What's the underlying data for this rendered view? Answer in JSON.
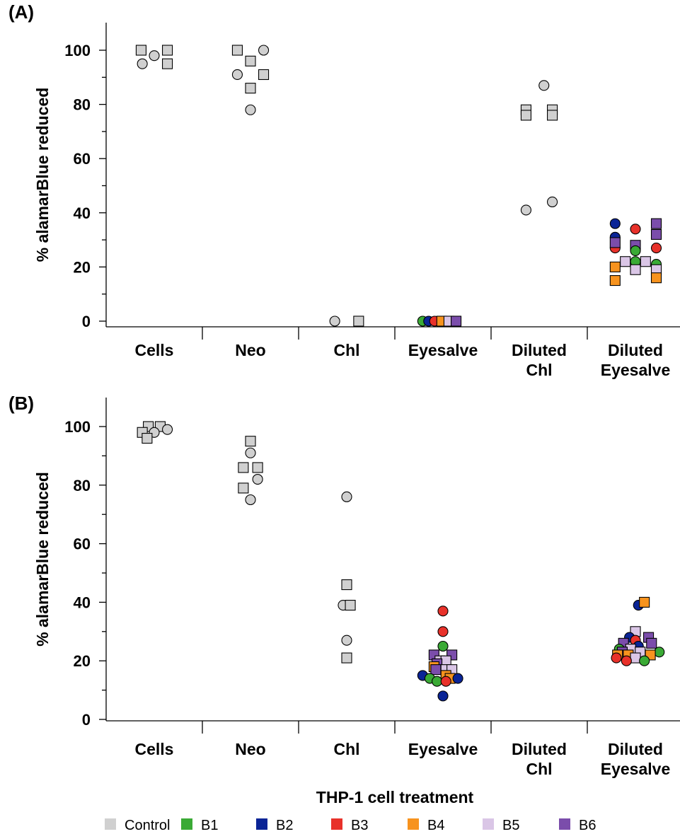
{
  "xlabel": "THP-1 cell treatment",
  "legend": [
    {
      "label": "Control",
      "color": "#d0d0d0",
      "edge": false
    },
    {
      "label": "B1",
      "color": "#3aaa35",
      "edge": false
    },
    {
      "label": "B2",
      "color": "#0a2496",
      "edge": false
    },
    {
      "label": "B3",
      "color": "#e8312a",
      "edge": false
    },
    {
      "label": "B4",
      "color": "#f7931e",
      "edge": false
    },
    {
      "label": "B5",
      "color": "#dac6e6",
      "edge": false
    },
    {
      "label": "B6",
      "color": "#7b4dab",
      "edge": false
    }
  ],
  "chart_data": [
    {
      "panel": "(A)",
      "type": "scatter",
      "ylabel": "% alamarBlue reduced",
      "ylim": [
        -2,
        110
      ],
      "yticks": [
        0,
        20,
        40,
        60,
        80,
        100
      ],
      "categories": [
        "Cells",
        "Neo",
        "Chl",
        "Eyesalve",
        "Diluted Chl",
        "Diluted Eyesalve"
      ],
      "points": [
        {
          "cat": 0,
          "dx": -0.22,
          "y": 100,
          "shape": "square",
          "group": "Control"
        },
        {
          "cat": 0,
          "dx": 0.22,
          "y": 100,
          "shape": "square",
          "group": "Control"
        },
        {
          "cat": 0,
          "dx": -0.2,
          "y": 95,
          "shape": "circle",
          "group": "Control"
        },
        {
          "cat": 0,
          "dx": 0.0,
          "y": 98,
          "shape": "circle",
          "group": "Control"
        },
        {
          "cat": 0,
          "dx": 0.22,
          "y": 95,
          "shape": "square",
          "group": "Control"
        },
        {
          "cat": 1,
          "dx": -0.22,
          "y": 100,
          "shape": "square",
          "group": "Control"
        },
        {
          "cat": 1,
          "dx": 0.22,
          "y": 100,
          "shape": "circle",
          "group": "Control"
        },
        {
          "cat": 1,
          "dx": 0.0,
          "y": 96,
          "shape": "square",
          "group": "Control"
        },
        {
          "cat": 1,
          "dx": -0.22,
          "y": 91,
          "shape": "circle",
          "group": "Control"
        },
        {
          "cat": 1,
          "dx": 0.22,
          "y": 91,
          "shape": "square",
          "group": "Control"
        },
        {
          "cat": 1,
          "dx": 0.0,
          "y": 86,
          "shape": "square",
          "group": "Control"
        },
        {
          "cat": 1,
          "dx": 0.0,
          "y": 78,
          "shape": "circle",
          "group": "Control"
        },
        {
          "cat": 2,
          "dx": -0.2,
          "y": 0,
          "shape": "circle",
          "group": "Control"
        },
        {
          "cat": 2,
          "dx": 0.2,
          "y": 0,
          "shape": "square",
          "group": "Control"
        },
        {
          "cat": 3,
          "dx": -0.34,
          "y": 0,
          "shape": "circle",
          "group": "B1"
        },
        {
          "cat": 3,
          "dx": -0.24,
          "y": 0,
          "shape": "circle",
          "group": "B2"
        },
        {
          "cat": 3,
          "dx": -0.14,
          "y": 0,
          "shape": "circle",
          "group": "B3"
        },
        {
          "cat": 3,
          "dx": -0.02,
          "y": 0,
          "shape": "square",
          "group": "B4"
        },
        {
          "cat": 3,
          "dx": 0.1,
          "y": 0,
          "shape": "square",
          "group": "B5"
        },
        {
          "cat": 3,
          "dx": 0.22,
          "y": 0,
          "shape": "square",
          "group": "B6"
        },
        {
          "cat": 4,
          "dx": -0.22,
          "y": 78,
          "shape": "square",
          "group": "Control"
        },
        {
          "cat": 4,
          "dx": 0.22,
          "y": 78,
          "shape": "square",
          "group": "Control"
        },
        {
          "cat": 4,
          "dx": -0.22,
          "y": 76,
          "shape": "square",
          "group": "Control"
        },
        {
          "cat": 4,
          "dx": 0.22,
          "y": 76,
          "shape": "square",
          "group": "Control"
        },
        {
          "cat": 4,
          "dx": 0.08,
          "y": 87,
          "shape": "circle",
          "group": "Control"
        },
        {
          "cat": 4,
          "dx": -0.22,
          "y": 41,
          "shape": "circle",
          "group": "Control"
        },
        {
          "cat": 4,
          "dx": 0.22,
          "y": 44,
          "shape": "circle",
          "group": "Control"
        },
        {
          "cat": 5,
          "dx": -0.34,
          "y": 36,
          "shape": "circle",
          "group": "B2"
        },
        {
          "cat": 5,
          "dx": -0.34,
          "y": 31,
          "shape": "circle",
          "group": "B2"
        },
        {
          "cat": 5,
          "dx": -0.34,
          "y": 27,
          "shape": "circle",
          "group": "B3"
        },
        {
          "cat": 5,
          "dx": -0.34,
          "y": 29,
          "shape": "square",
          "group": "B6"
        },
        {
          "cat": 5,
          "dx": 0.0,
          "y": 34,
          "shape": "circle",
          "group": "B3"
        },
        {
          "cat": 5,
          "dx": 0.35,
          "y": 36,
          "shape": "square",
          "group": "B6"
        },
        {
          "cat": 5,
          "dx": 0.35,
          "y": 32,
          "shape": "square",
          "group": "B6"
        },
        {
          "cat": 5,
          "dx": 0.35,
          "y": 27,
          "shape": "circle",
          "group": "B3"
        },
        {
          "cat": 5,
          "dx": 0.0,
          "y": 28,
          "shape": "square",
          "group": "B6"
        },
        {
          "cat": 5,
          "dx": 0.0,
          "y": 26,
          "shape": "circle",
          "group": "B1"
        },
        {
          "cat": 5,
          "dx": 0.0,
          "y": 22,
          "shape": "circle",
          "group": "B1"
        },
        {
          "cat": 5,
          "dx": 0.35,
          "y": 21,
          "shape": "circle",
          "group": "B1"
        },
        {
          "cat": 5,
          "dx": -0.17,
          "y": 22,
          "shape": "square",
          "group": "B5"
        },
        {
          "cat": 5,
          "dx": 0.17,
          "y": 22,
          "shape": "square",
          "group": "B5"
        },
        {
          "cat": 5,
          "dx": 0.0,
          "y": 19,
          "shape": "square",
          "group": "B5"
        },
        {
          "cat": 5,
          "dx": 0.35,
          "y": 19,
          "shape": "square",
          "group": "B5"
        },
        {
          "cat": 5,
          "dx": -0.34,
          "y": 20,
          "shape": "square",
          "group": "B4"
        },
        {
          "cat": 5,
          "dx": -0.34,
          "y": 15,
          "shape": "square",
          "group": "B4"
        },
        {
          "cat": 5,
          "dx": 0.35,
          "y": 16,
          "shape": "square",
          "group": "B4"
        }
      ]
    },
    {
      "panel": "(B)",
      "type": "scatter",
      "ylabel": "% alamarBlue reduced",
      "ylim": [
        -2,
        110
      ],
      "yticks": [
        0,
        20,
        40,
        60,
        80,
        100
      ],
      "categories": [
        "Cells",
        "Neo",
        "Chl",
        "Eyesalve",
        "Diluted Chl",
        "Diluted Eyesalve"
      ],
      "points": [
        {
          "cat": 0,
          "dx": -0.1,
          "y": 100,
          "shape": "square",
          "group": "Control"
        },
        {
          "cat": 0,
          "dx": 0.1,
          "y": 100,
          "shape": "square",
          "group": "Control"
        },
        {
          "cat": 0,
          "dx": -0.2,
          "y": 98,
          "shape": "square",
          "group": "Control"
        },
        {
          "cat": 0,
          "dx": 0.0,
          "y": 98,
          "shape": "circle",
          "group": "Control"
        },
        {
          "cat": 0,
          "dx": 0.22,
          "y": 99,
          "shape": "circle",
          "group": "Control"
        },
        {
          "cat": 0,
          "dx": -0.12,
          "y": 96,
          "shape": "square",
          "group": "Control"
        },
        {
          "cat": 1,
          "dx": 0.0,
          "y": 95,
          "shape": "square",
          "group": "Control"
        },
        {
          "cat": 1,
          "dx": 0.0,
          "y": 91,
          "shape": "circle",
          "group": "Control"
        },
        {
          "cat": 1,
          "dx": -0.12,
          "y": 86,
          "shape": "square",
          "group": "Control"
        },
        {
          "cat": 1,
          "dx": 0.12,
          "y": 86,
          "shape": "square",
          "group": "Control"
        },
        {
          "cat": 1,
          "dx": 0.12,
          "y": 82,
          "shape": "circle",
          "group": "Control"
        },
        {
          "cat": 1,
          "dx": -0.12,
          "y": 79,
          "shape": "square",
          "group": "Control"
        },
        {
          "cat": 1,
          "dx": 0.0,
          "y": 75,
          "shape": "circle",
          "group": "Control"
        },
        {
          "cat": 2,
          "dx": 0.0,
          "y": 76,
          "shape": "circle",
          "group": "Control"
        },
        {
          "cat": 2,
          "dx": 0.0,
          "y": 46,
          "shape": "square",
          "group": "Control"
        },
        {
          "cat": 2,
          "dx": -0.06,
          "y": 39,
          "shape": "circle",
          "group": "Control"
        },
        {
          "cat": 2,
          "dx": 0.06,
          "y": 39,
          "shape": "square",
          "group": "Control"
        },
        {
          "cat": 2,
          "dx": 0.0,
          "y": 27,
          "shape": "circle",
          "group": "Control"
        },
        {
          "cat": 2,
          "dx": 0.0,
          "y": 21,
          "shape": "square",
          "group": "Control"
        },
        {
          "cat": 3,
          "dx": 0.0,
          "y": 37,
          "shape": "circle",
          "group": "B3"
        },
        {
          "cat": 3,
          "dx": 0.0,
          "y": 30,
          "shape": "circle",
          "group": "B3"
        },
        {
          "cat": 3,
          "dx": 0.0,
          "y": 25,
          "shape": "circle",
          "group": "B1"
        },
        {
          "cat": 3,
          "dx": -0.15,
          "y": 22,
          "shape": "square",
          "group": "B6"
        },
        {
          "cat": 3,
          "dx": 0.15,
          "y": 22,
          "shape": "square",
          "group": "B6"
        },
        {
          "cat": 3,
          "dx": -0.05,
          "y": 20,
          "shape": "square",
          "group": "B5"
        },
        {
          "cat": 3,
          "dx": 0.05,
          "y": 20,
          "shape": "square",
          "group": "B5"
        },
        {
          "cat": 3,
          "dx": -0.1,
          "y": 19,
          "shape": "square",
          "group": "B6"
        },
        {
          "cat": 3,
          "dx": -0.15,
          "y": 18,
          "shape": "square",
          "group": "B4"
        },
        {
          "cat": 3,
          "dx": 0.05,
          "y": 17,
          "shape": "square",
          "group": "B5"
        },
        {
          "cat": 3,
          "dx": 0.15,
          "y": 17,
          "shape": "square",
          "group": "B5"
        },
        {
          "cat": 3,
          "dx": -0.12,
          "y": 17,
          "shape": "square",
          "group": "B6"
        },
        {
          "cat": 3,
          "dx": 0.05,
          "y": 15,
          "shape": "square",
          "group": "B4"
        },
        {
          "cat": 3,
          "dx": 0.12,
          "y": 14,
          "shape": "square",
          "group": "B4"
        },
        {
          "cat": 3,
          "dx": -0.34,
          "y": 15,
          "shape": "circle",
          "group": "B2"
        },
        {
          "cat": 3,
          "dx": -0.22,
          "y": 14,
          "shape": "circle",
          "group": "B1"
        },
        {
          "cat": 3,
          "dx": -0.1,
          "y": 13,
          "shape": "circle",
          "group": "B1"
        },
        {
          "cat": 3,
          "dx": 0.05,
          "y": 13,
          "shape": "circle",
          "group": "B3"
        },
        {
          "cat": 3,
          "dx": 0.25,
          "y": 14,
          "shape": "circle",
          "group": "B2"
        },
        {
          "cat": 3,
          "dx": 0.0,
          "y": 8,
          "shape": "circle",
          "group": "B2"
        },
        {
          "cat": 5,
          "dx": 0.05,
          "y": 39,
          "shape": "circle",
          "group": "B2"
        },
        {
          "cat": 5,
          "dx": 0.15,
          "y": 40,
          "shape": "square",
          "group": "B4"
        },
        {
          "cat": 5,
          "dx": 0.0,
          "y": 30,
          "shape": "square",
          "group": "B5"
        },
        {
          "cat": 5,
          "dx": -0.1,
          "y": 28,
          "shape": "circle",
          "group": "B2"
        },
        {
          "cat": 5,
          "dx": 0.0,
          "y": 27,
          "shape": "circle",
          "group": "B3"
        },
        {
          "cat": 5,
          "dx": 0.22,
          "y": 28,
          "shape": "square",
          "group": "B6"
        },
        {
          "cat": 5,
          "dx": -0.2,
          "y": 26,
          "shape": "square",
          "group": "B6"
        },
        {
          "cat": 5,
          "dx": 0.27,
          "y": 26,
          "shape": "square",
          "group": "B6"
        },
        {
          "cat": 5,
          "dx": 0.05,
          "y": 25,
          "shape": "circle",
          "group": "B2"
        },
        {
          "cat": 5,
          "dx": -0.08,
          "y": 24,
          "shape": "square",
          "group": "B5"
        },
        {
          "cat": 5,
          "dx": -0.27,
          "y": 24,
          "shape": "circle",
          "group": "B1"
        },
        {
          "cat": 5,
          "dx": -0.22,
          "y": 23,
          "shape": "square",
          "group": "B6"
        },
        {
          "cat": 5,
          "dx": 0.08,
          "y": 23,
          "shape": "square",
          "group": "B5"
        },
        {
          "cat": 5,
          "dx": 0.4,
          "y": 23,
          "shape": "circle",
          "group": "B1"
        },
        {
          "cat": 5,
          "dx": -0.3,
          "y": 22,
          "shape": "square",
          "group": "B4"
        },
        {
          "cat": 5,
          "dx": -0.12,
          "y": 22,
          "shape": "square",
          "group": "B4"
        },
        {
          "cat": 5,
          "dx": 0.25,
          "y": 22,
          "shape": "square",
          "group": "B4"
        },
        {
          "cat": 5,
          "dx": -0.32,
          "y": 21,
          "shape": "circle",
          "group": "B3"
        },
        {
          "cat": 5,
          "dx": 0.0,
          "y": 21,
          "shape": "square",
          "group": "B5"
        },
        {
          "cat": 5,
          "dx": -0.15,
          "y": 20,
          "shape": "circle",
          "group": "B3"
        },
        {
          "cat": 5,
          "dx": 0.15,
          "y": 20,
          "shape": "circle",
          "group": "B1"
        }
      ]
    }
  ]
}
